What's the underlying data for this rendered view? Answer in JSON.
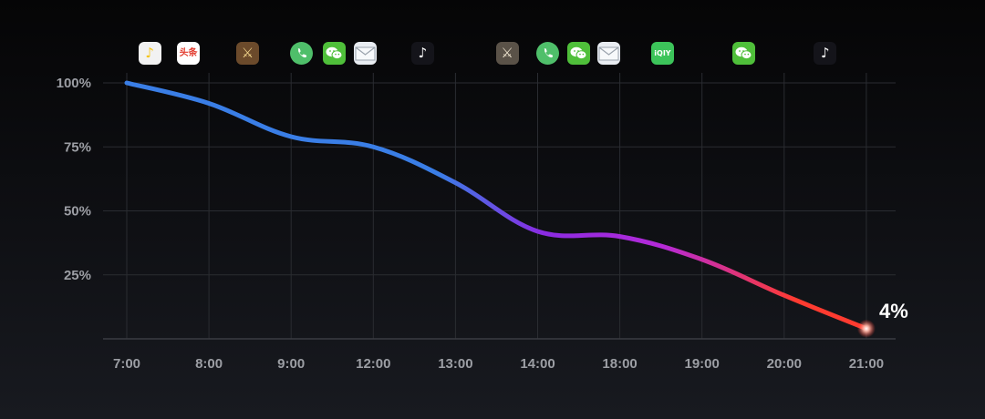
{
  "chart_data": {
    "type": "line",
    "categories": [
      "7:00",
      "8:00",
      "9:00",
      "12:00",
      "13:00",
      "14:00",
      "18:00",
      "19:00",
      "20:00",
      "21:00"
    ],
    "values": [
      100,
      92,
      79,
      75,
      61,
      42,
      40,
      31,
      17,
      4
    ],
    "y_ticks": [
      "100%",
      "75%",
      "50%",
      "25%"
    ],
    "ylim": [
      0,
      100
    ],
    "grid": true,
    "end_label": "4%",
    "colors": [
      "#3a7ee6",
      "#8a2be2",
      "#ff3b30"
    ]
  },
  "app_icons": [
    {
      "name": "music-app-icon",
      "pos": 0.28,
      "bg": "#f2f2f2",
      "fg": "#f5c518",
      "glyph": "♪"
    },
    {
      "name": "news-app-icon",
      "pos": 0.75,
      "bg": "#ffffff",
      "fg": "#e23b2e",
      "glyph": "头条"
    },
    {
      "name": "game-app-icon",
      "pos": 1.47,
      "bg": "#6b4a2b",
      "fg": "#f0d48a",
      "glyph": "⚔"
    },
    {
      "name": "phone-icon",
      "pos": 2.13,
      "bg": "#4fbf6a",
      "fg": "#ffffff",
      "glyph": "✆"
    },
    {
      "name": "wechat-icon",
      "pos": 2.52,
      "bg": "#4fbf3a",
      "fg": "#ffffff",
      "glyph": "wechat"
    },
    {
      "name": "mail-icon",
      "pos": 2.9,
      "bg": "#e9edf2",
      "fg": "#9aa3ad",
      "glyph": "mail"
    },
    {
      "name": "tiktok-icon",
      "pos": 3.6,
      "bg": "#14141a",
      "fg": "#ffffff",
      "glyph": "♪"
    },
    {
      "name": "game-app-icon",
      "pos": 4.63,
      "bg": "#5a5248",
      "fg": "#f0e6d0",
      "glyph": "⚔"
    },
    {
      "name": "phone-icon",
      "pos": 5.12,
      "bg": "#4fbf6a",
      "fg": "#ffffff",
      "glyph": "✆"
    },
    {
      "name": "wechat-icon",
      "pos": 5.5,
      "bg": "#4fbf3a",
      "fg": "#ffffff",
      "glyph": "wechat"
    },
    {
      "name": "mail-icon",
      "pos": 5.87,
      "bg": "#e9edf2",
      "fg": "#9aa3ad",
      "glyph": "mail"
    },
    {
      "name": "video-app-icon",
      "pos": 6.52,
      "bg": "#3cc45a",
      "fg": "#ffffff",
      "glyph": "iQIY"
    },
    {
      "name": "wechat-icon",
      "pos": 7.51,
      "bg": "#4fbf3a",
      "fg": "#ffffff",
      "glyph": "wechat"
    },
    {
      "name": "tiktok-icon",
      "pos": 8.5,
      "bg": "#14141a",
      "fg": "#ffffff",
      "glyph": "♪"
    }
  ]
}
